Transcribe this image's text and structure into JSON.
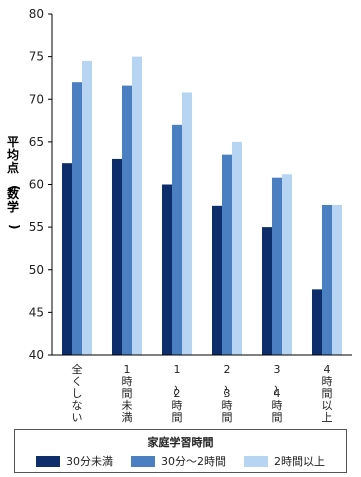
{
  "chart_data": {
    "type": "bar",
    "ylabel": "平均点(数学)",
    "ylim": [
      40,
      80
    ],
    "yticks": [
      40,
      45,
      50,
      55,
      60,
      65,
      70,
      75,
      80
    ],
    "categories": [
      "全くしない",
      "1時間未満",
      "1〜2時間",
      "2〜3時間",
      "3〜4時間",
      "4時間以上"
    ],
    "series": [
      {
        "name": "30分未満",
        "color": "#0d2d6b",
        "values": [
          62.5,
          63.0,
          60.0,
          57.5,
          55.0,
          47.7
        ]
      },
      {
        "name": "30分〜2時間",
        "color": "#4a7fc1",
        "values": [
          72.0,
          71.6,
          67.0,
          63.5,
          60.8,
          57.6
        ]
      },
      {
        "name": "2時間以上",
        "color": "#b7d4f3",
        "values": [
          74.5,
          75.0,
          70.8,
          65.0,
          61.2,
          57.6
        ]
      }
    ],
    "legend_title": "家庭学習時間",
    "grid": false,
    "legend_position": "bottom"
  }
}
